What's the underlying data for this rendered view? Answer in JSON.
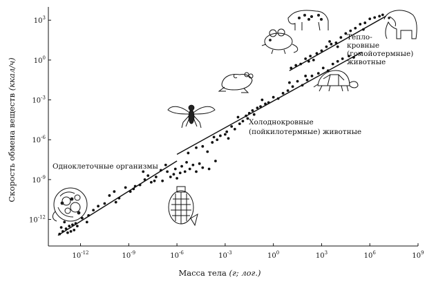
{
  "chart_data": {
    "type": "scatter",
    "title": "",
    "xlabel": "Масса тела",
    "xlabel_unit": "(г; лог.)",
    "ylabel": "Скорость обмена веществ",
    "ylabel_unit": "(ккал/ч)",
    "x_scale": "log10",
    "y_scale": "log10",
    "xlim": [
      1e-14,
      1000000000.0
    ],
    "ylim": [
      1e-14,
      10000.0
    ],
    "x_ticks": [
      {
        "base": "10",
        "exp": "-12",
        "value": 1e-12
      },
      {
        "base": "10",
        "exp": "-9",
        "value": 1e-09
      },
      {
        "base": "10",
        "exp": "-6",
        "value": 1e-06
      },
      {
        "base": "10",
        "exp": "-3",
        "value": 0.001
      },
      {
        "base": "10",
        "exp": "0",
        "value": 1
      },
      {
        "base": "10",
        "exp": "3",
        "value": 1000.0
      },
      {
        "base": "10",
        "exp": "6",
        "value": 1000000.0
      },
      {
        "base": "10",
        "exp": "9",
        "value": 1000000000.0
      }
    ],
    "y_ticks": [
      {
        "base": "10",
        "exp": "3",
        "value": 1000.0
      },
      {
        "base": "10",
        "exp": "0",
        "value": 1
      },
      {
        "base": "10",
        "exp": "-3",
        "value": 0.001
      },
      {
        "base": "10",
        "exp": "-6",
        "value": 1e-06
      },
      {
        "base": "10",
        "exp": "-9",
        "value": 1e-09
      },
      {
        "base": "10",
        "exp": "-12",
        "value": 1e-12
      }
    ],
    "grid": false,
    "legend": "none",
    "annotations": [
      {
        "lines": [
          "Одноклеточные организмы"
        ]
      },
      {
        "lines": [
          "Холоднокровные",
          "(пойкилотермные) животные"
        ]
      },
      {
        "lines": [
          "Тепло-",
          "кровные",
          "(гомойотермные)",
          "животные"
        ]
      }
    ],
    "fit_lines": [
      {
        "group": "unicellular",
        "log_x": [
          -13.4,
          -6.0
        ],
        "log_y": [
          -13.2,
          -7.6
        ]
      },
      {
        "group": "poikilotherms",
        "log_x": [
          -6.0,
          5.5
        ],
        "log_y": [
          -7.1,
          0.6
        ]
      },
      {
        "group": "homeotherms",
        "log_x": [
          1.0,
          7.0
        ],
        "log_y": [
          -0.8,
          3.3
        ]
      }
    ],
    "series": [
      {
        "group": "unicellular",
        "points_log10": [
          [
            -13.3,
            -13.1
          ],
          [
            -13.1,
            -12.9
          ],
          [
            -12.9,
            -12.7
          ],
          [
            -12.7,
            -12.5
          ],
          [
            -12.5,
            -12.4
          ],
          [
            -13.0,
            -12.2
          ],
          [
            -12.6,
            -12.9
          ],
          [
            -11.6,
            -12.2
          ],
          [
            -11.2,
            -11.3
          ],
          [
            -10.9,
            -11.0
          ],
          [
            -10.5,
            -10.8
          ],
          [
            -9.8,
            -10.7
          ],
          [
            -9.6,
            -10.4
          ],
          [
            -9.2,
            -9.6
          ],
          [
            -8.9,
            -9.9
          ],
          [
            -8.6,
            -9.5
          ],
          [
            -8.3,
            -9.4
          ],
          [
            -8.0,
            -9.0
          ],
          [
            -7.6,
            -9.2
          ],
          [
            -7.3,
            -8.8
          ],
          [
            -7.0,
            -8.3
          ],
          [
            -6.9,
            -9.1
          ],
          [
            -6.6,
            -8.4
          ],
          [
            -6.4,
            -8.8
          ],
          [
            -6.2,
            -8.6
          ],
          [
            -6.0,
            -8.9
          ],
          [
            -5.8,
            -8.5
          ],
          [
            -5.7,
            -8.0
          ],
          [
            -5.5,
            -8.4
          ],
          [
            -5.2,
            -8.2
          ],
          [
            -5.0,
            -7.9
          ],
          [
            -4.8,
            -8.4
          ],
          [
            -4.4,
            -8.1
          ],
          [
            -4.0,
            -8.2
          ],
          [
            -3.6,
            -7.6
          ],
          [
            -6.7,
            -7.9
          ],
          [
            -7.8,
            -8.7
          ],
          [
            -8.7,
            -9.7
          ],
          [
            -9.9,
            -9.9
          ],
          [
            -11.9,
            -11.9
          ],
          [
            -11.5,
            -11.7
          ],
          [
            -10.2,
            -10.2
          ],
          [
            -8.1,
            -8.4
          ],
          [
            -7.4,
            -9.1
          ],
          [
            -6.1,
            -8.2
          ],
          [
            -5.4,
            -7.7
          ],
          [
            -4.6,
            -7.8
          ],
          [
            -12.2,
            -12.5
          ],
          [
            -12.4,
            -12.8
          ],
          [
            -12.8,
            -13.0
          ],
          [
            -13.2,
            -12.6
          ],
          [
            -12.3,
            -12.3
          ]
        ]
      },
      {
        "group": "poikilotherms",
        "points_log10": [
          [
            -4.4,
            -6.5
          ],
          [
            -4.1,
            -6.9
          ],
          [
            -3.8,
            -6.2
          ],
          [
            -3.5,
            -6.0
          ],
          [
            -3.3,
            -5.7
          ],
          [
            -3.0,
            -5.6
          ],
          [
            -2.9,
            -5.4
          ],
          [
            -2.6,
            -5.0
          ],
          [
            -2.4,
            -5.2
          ],
          [
            -2.1,
            -4.8
          ],
          [
            -1.9,
            -4.6
          ],
          [
            -1.7,
            -4.2
          ],
          [
            -1.5,
            -4.0
          ],
          [
            -1.3,
            -3.8
          ],
          [
            -1.2,
            -4.1
          ],
          [
            -1.0,
            -3.6
          ],
          [
            -0.8,
            -3.5
          ],
          [
            -0.5,
            -3.3
          ],
          [
            -0.3,
            -3.2
          ],
          [
            0.0,
            -2.8
          ],
          [
            0.3,
            -2.9
          ],
          [
            0.6,
            -2.5
          ],
          [
            0.9,
            -2.3
          ],
          [
            1.2,
            -2.0
          ],
          [
            1.5,
            -1.6
          ],
          [
            1.8,
            -1.9
          ],
          [
            2.1,
            -1.5
          ],
          [
            2.4,
            -1.2
          ],
          [
            2.8,
            -1.0
          ],
          [
            3.1,
            -0.6
          ],
          [
            3.4,
            -0.8
          ],
          [
            3.7,
            -0.3
          ],
          [
            4.0,
            -0.1
          ],
          [
            4.3,
            0.1
          ],
          [
            4.7,
            0.3
          ],
          [
            5.0,
            0.2
          ],
          [
            -3.7,
            -5.8
          ],
          [
            -2.8,
            -5.9
          ],
          [
            -1.6,
            -4.4
          ],
          [
            -0.7,
            -3.0
          ],
          [
            1.0,
            -1.7
          ],
          [
            2.0,
            -1.2
          ],
          [
            -4.8,
            -6.6
          ],
          [
            -5.3,
            -7.0
          ],
          [
            -2.2,
            -4.3
          ]
        ]
      },
      {
        "group": "homeotherms",
        "points_log10": [
          [
            1.1,
            -0.6
          ],
          [
            1.4,
            -0.4
          ],
          [
            1.7,
            -0.3
          ],
          [
            2.0,
            0.1
          ],
          [
            2.3,
            0.3
          ],
          [
            2.5,
            0.0
          ],
          [
            2.7,
            0.5
          ],
          [
            3.0,
            0.7
          ],
          [
            3.3,
            1.0
          ],
          [
            3.6,
            1.2
          ],
          [
            3.9,
            1.3
          ],
          [
            4.2,
            1.7
          ],
          [
            4.5,
            2.0
          ],
          [
            4.8,
            2.2
          ],
          [
            5.1,
            2.4
          ],
          [
            5.4,
            2.7
          ],
          [
            5.7,
            2.8
          ],
          [
            6.0,
            3.1
          ],
          [
            6.3,
            3.2
          ],
          [
            6.6,
            3.3
          ],
          [
            4.0,
            1.0
          ],
          [
            5.6,
            2.3
          ],
          [
            2.2,
            -0.1
          ],
          [
            3.5,
            1.4
          ],
          [
            6.8,
            3.4
          ]
        ]
      }
    ]
  }
}
